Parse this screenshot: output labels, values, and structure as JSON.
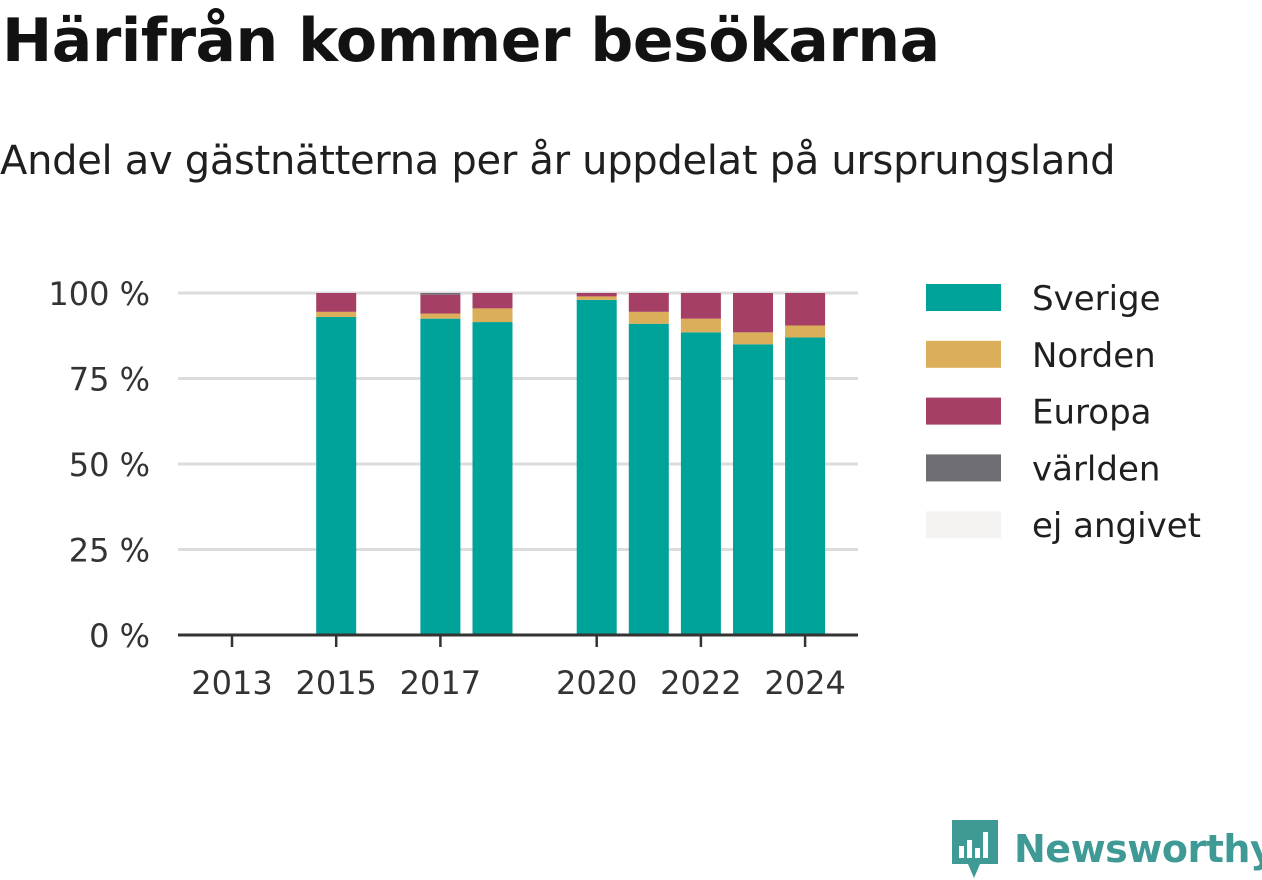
{
  "title": "Härifrån kommer besökarna",
  "subtitle": "Andel av gästnätterna per år uppdelat på ursprungsland",
  "brand": {
    "name": "Newsworthy",
    "icon": "newsworthy-logo-icon"
  },
  "colors": {
    "Sverige": "#00a39a",
    "Norden": "#dbae5a",
    "Europa": "#a63f66",
    "världen": "#6d6d73",
    "ej angivet": "#f4f3f1",
    "grid": "#dcdcdc",
    "axis": "#333333"
  },
  "chart_data": {
    "type": "bar",
    "stacked": true,
    "x": [
      2013,
      2014,
      2015,
      2016,
      2017,
      2018,
      2019,
      2020,
      2021,
      2022,
      2023,
      2024
    ],
    "x_tick_labels": [
      "2013",
      "2015",
      "2017",
      "2020",
      "2022",
      "2024"
    ],
    "y_tick_labels": [
      "0 %",
      "25 %",
      "50 %",
      "75 %",
      "100 %"
    ],
    "ylim": [
      0,
      100
    ],
    "grid": true,
    "legend_position": "right",
    "series": [
      {
        "name": "Sverige",
        "values": [
          null,
          null,
          93,
          null,
          92.5,
          91.5,
          null,
          98,
          91,
          88.5,
          85,
          87
        ]
      },
      {
        "name": "Norden",
        "values": [
          null,
          null,
          1.5,
          null,
          1.5,
          4,
          null,
          1,
          3.5,
          4,
          3.5,
          3.5
        ]
      },
      {
        "name": "Europa",
        "values": [
          null,
          null,
          5.5,
          null,
          5.5,
          4.5,
          null,
          1,
          5.5,
          7.5,
          11.5,
          9.5
        ]
      },
      {
        "name": "världen",
        "values": [
          null,
          null,
          0,
          null,
          0.5,
          0,
          null,
          0,
          0,
          0,
          0,
          0
        ]
      },
      {
        "name": "ej angivet",
        "values": [
          null,
          null,
          0,
          null,
          0,
          0,
          null,
          0,
          0,
          0,
          0,
          0
        ]
      }
    ]
  }
}
